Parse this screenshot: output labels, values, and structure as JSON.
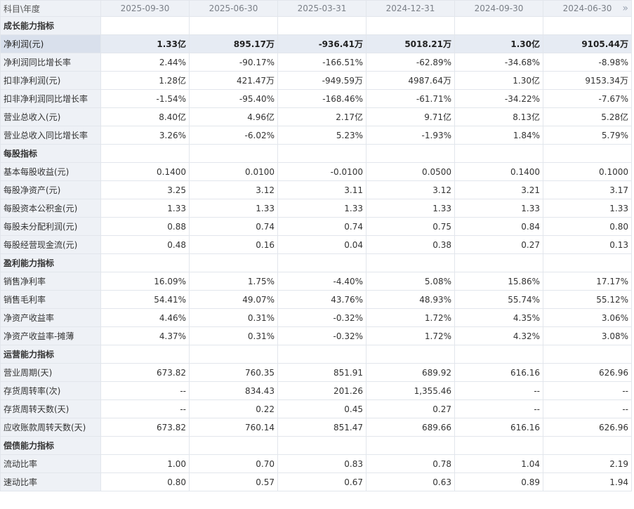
{
  "table": {
    "corner_label": "科目\\年度",
    "periods": [
      "2025-09-30",
      "2025-06-30",
      "2025-03-31",
      "2024-12-31",
      "2024-09-30",
      "2024-06-30"
    ],
    "more_icon": "»",
    "rows": [
      {
        "type": "section",
        "label": "成长能力指标"
      },
      {
        "type": "data",
        "highlight": true,
        "label": "净利润(元)",
        "values": [
          "1.33亿",
          "895.17万",
          "-936.41万",
          "5018.21万",
          "1.30亿",
          "9105.44万"
        ]
      },
      {
        "type": "data",
        "label": "净利润同比增长率",
        "values": [
          "2.44%",
          "-90.17%",
          "-166.51%",
          "-62.89%",
          "-34.68%",
          "-8.98%"
        ]
      },
      {
        "type": "data",
        "label": "扣非净利润(元)",
        "values": [
          "1.28亿",
          "421.47万",
          "-949.59万",
          "4987.64万",
          "1.30亿",
          "9153.34万"
        ]
      },
      {
        "type": "data",
        "label": "扣非净利润同比增长率",
        "values": [
          "-1.54%",
          "-95.40%",
          "-168.46%",
          "-61.71%",
          "-34.22%",
          "-7.67%"
        ]
      },
      {
        "type": "data",
        "label": "营业总收入(元)",
        "values": [
          "8.40亿",
          "4.96亿",
          "2.17亿",
          "9.71亿",
          "8.13亿",
          "5.28亿"
        ]
      },
      {
        "type": "data",
        "label": "营业总收入同比增长率",
        "values": [
          "3.26%",
          "-6.02%",
          "5.23%",
          "-1.93%",
          "1.84%",
          "5.79%"
        ]
      },
      {
        "type": "section",
        "label": "每股指标"
      },
      {
        "type": "data",
        "label": "基本每股收益(元)",
        "values": [
          "0.1400",
          "0.0100",
          "-0.0100",
          "0.0500",
          "0.1400",
          "0.1000"
        ]
      },
      {
        "type": "data",
        "label": "每股净资产(元)",
        "values": [
          "3.25",
          "3.12",
          "3.11",
          "3.12",
          "3.21",
          "3.17"
        ]
      },
      {
        "type": "data",
        "label": "每股资本公积金(元)",
        "values": [
          "1.33",
          "1.33",
          "1.33",
          "1.33",
          "1.33",
          "1.33"
        ]
      },
      {
        "type": "data",
        "label": "每股未分配利润(元)",
        "values": [
          "0.88",
          "0.74",
          "0.74",
          "0.75",
          "0.84",
          "0.80"
        ]
      },
      {
        "type": "data",
        "label": "每股经营现金流(元)",
        "values": [
          "0.48",
          "0.16",
          "0.04",
          "0.38",
          "0.27",
          "0.13"
        ]
      },
      {
        "type": "section",
        "label": "盈利能力指标"
      },
      {
        "type": "data",
        "label": "销售净利率",
        "values": [
          "16.09%",
          "1.75%",
          "-4.40%",
          "5.08%",
          "15.86%",
          "17.17%"
        ]
      },
      {
        "type": "data",
        "label": "销售毛利率",
        "values": [
          "54.41%",
          "49.07%",
          "43.76%",
          "48.93%",
          "55.74%",
          "55.12%"
        ]
      },
      {
        "type": "data",
        "label": "净资产收益率",
        "values": [
          "4.46%",
          "0.31%",
          "-0.32%",
          "1.72%",
          "4.35%",
          "3.06%"
        ]
      },
      {
        "type": "data",
        "label": "净资产收益率-摊薄",
        "values": [
          "4.37%",
          "0.31%",
          "-0.32%",
          "1.72%",
          "4.32%",
          "3.08%"
        ]
      },
      {
        "type": "section",
        "label": "运营能力指标"
      },
      {
        "type": "data",
        "label": "营业周期(天)",
        "values": [
          "673.82",
          "760.35",
          "851.91",
          "689.92",
          "616.16",
          "626.96"
        ]
      },
      {
        "type": "data",
        "label": "存货周转率(次)",
        "values": [
          "--",
          "834.43",
          "201.26",
          "1,355.46",
          "--",
          "--"
        ]
      },
      {
        "type": "data",
        "label": "存货周转天数(天)",
        "values": [
          "--",
          "0.22",
          "0.45",
          "0.27",
          "--",
          "--"
        ]
      },
      {
        "type": "data",
        "label": "应收账款周转天数(天)",
        "values": [
          "673.82",
          "760.14",
          "851.47",
          "689.66",
          "616.16",
          "626.96"
        ]
      },
      {
        "type": "section",
        "label": "偿债能力指标"
      },
      {
        "type": "data",
        "label": "流动比率",
        "values": [
          "1.00",
          "0.70",
          "0.83",
          "0.78",
          "1.04",
          "2.19"
        ]
      },
      {
        "type": "data",
        "label": "速动比率",
        "values": [
          "0.80",
          "0.57",
          "0.67",
          "0.63",
          "0.89",
          "1.94"
        ]
      }
    ]
  }
}
